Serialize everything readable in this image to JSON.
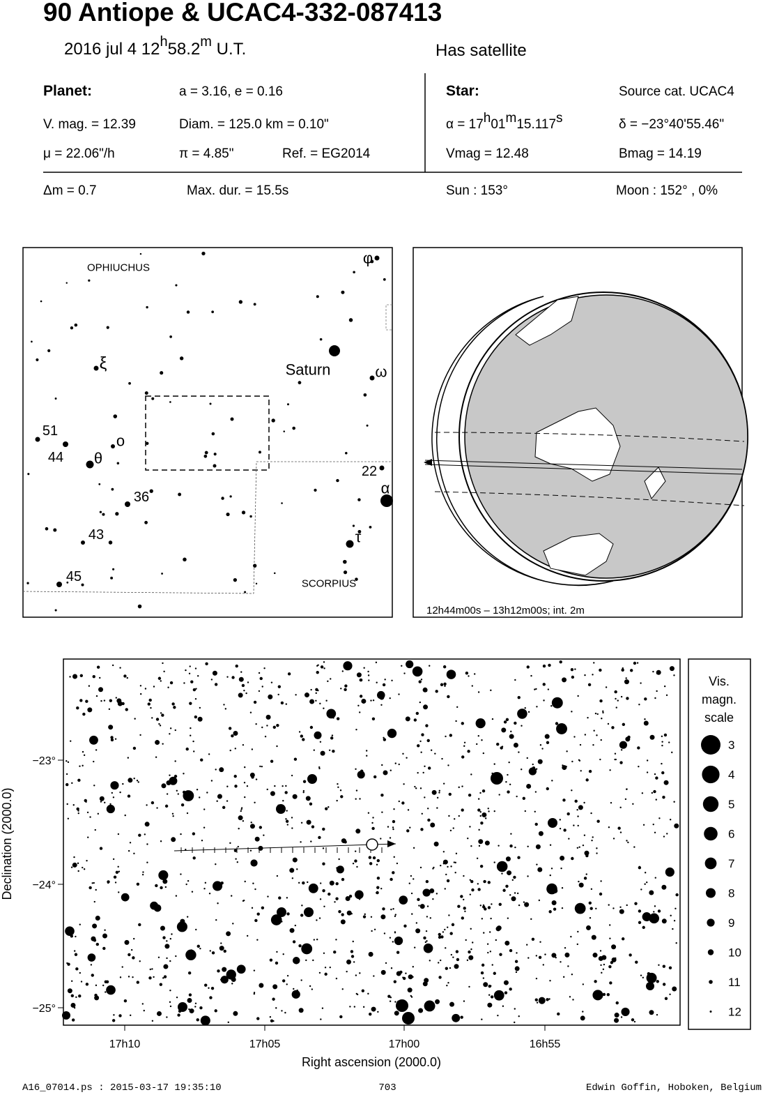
{
  "header": {
    "title": "90 Antiope  &  UCAC4-332-087413",
    "date": {
      "pre": "2016 jul  4  12",
      "h": "h",
      "mid": "58.2",
      "m": "m",
      "post": " U.T."
    },
    "satellite": "Has satellite"
  },
  "planet": {
    "heading": "Planet:",
    "orbit": "a = 3.16, e = 0.16",
    "vmag": "V. mag. = 12.39",
    "diam": "Diam. = 125.0 km = 0.10\"",
    "mu": "μ =  22.06\"/h",
    "pi": "π =  4.85\"",
    "ref": "Ref. = EG2014"
  },
  "star": {
    "heading": "Star:",
    "source": "Source cat.  UCAC4",
    "ra": {
      "pre": "α = 17",
      "h": "h",
      "mid": "01",
      "m": "m",
      "sec": "15.117",
      "s": "s"
    },
    "dec": "δ = −23°40'55.46\"",
    "vmag": "Vmag = 12.48",
    "bmag": "Bmag = 14.19"
  },
  "event": {
    "dm": "Δm = 0.7",
    "dur": "Max. dur. = 15.5s",
    "sun": "Sun : 153°",
    "moon": "Moon : 152° ,  0%"
  },
  "finder": {
    "labels": [
      "OPHIUCHUS",
      "φ",
      "ξ",
      "Saturn",
      "ω",
      "51",
      "ο",
      "44",
      "θ",
      "22",
      "α",
      "36",
      "τ",
      "43",
      "45",
      "SCORPIUS"
    ]
  },
  "globe": {
    "caption": "12h44m00s – 13h12m00s; int.  2m"
  },
  "starchart": {
    "ra_ticks": [
      "17h10",
      "17h05",
      "17h00",
      "16h55"
    ],
    "dec_ticks": [
      "−23°",
      "−24°",
      "−25°"
    ],
    "x_label": "Right ascension (2000.0)",
    "y_label": "Declination (2000.0)"
  },
  "scale": {
    "title": [
      "Vis.",
      "magn.",
      "scale"
    ],
    "mags": [
      "3",
      "4",
      "5",
      "6",
      "7",
      "8",
      "9",
      "10",
      "11",
      "12"
    ]
  },
  "footer": {
    "left": "A16_07014.ps : 2015-03-17 19:35:10",
    "center": "703",
    "right": "Edwin Goffin, Hoboken, Belgium"
  }
}
